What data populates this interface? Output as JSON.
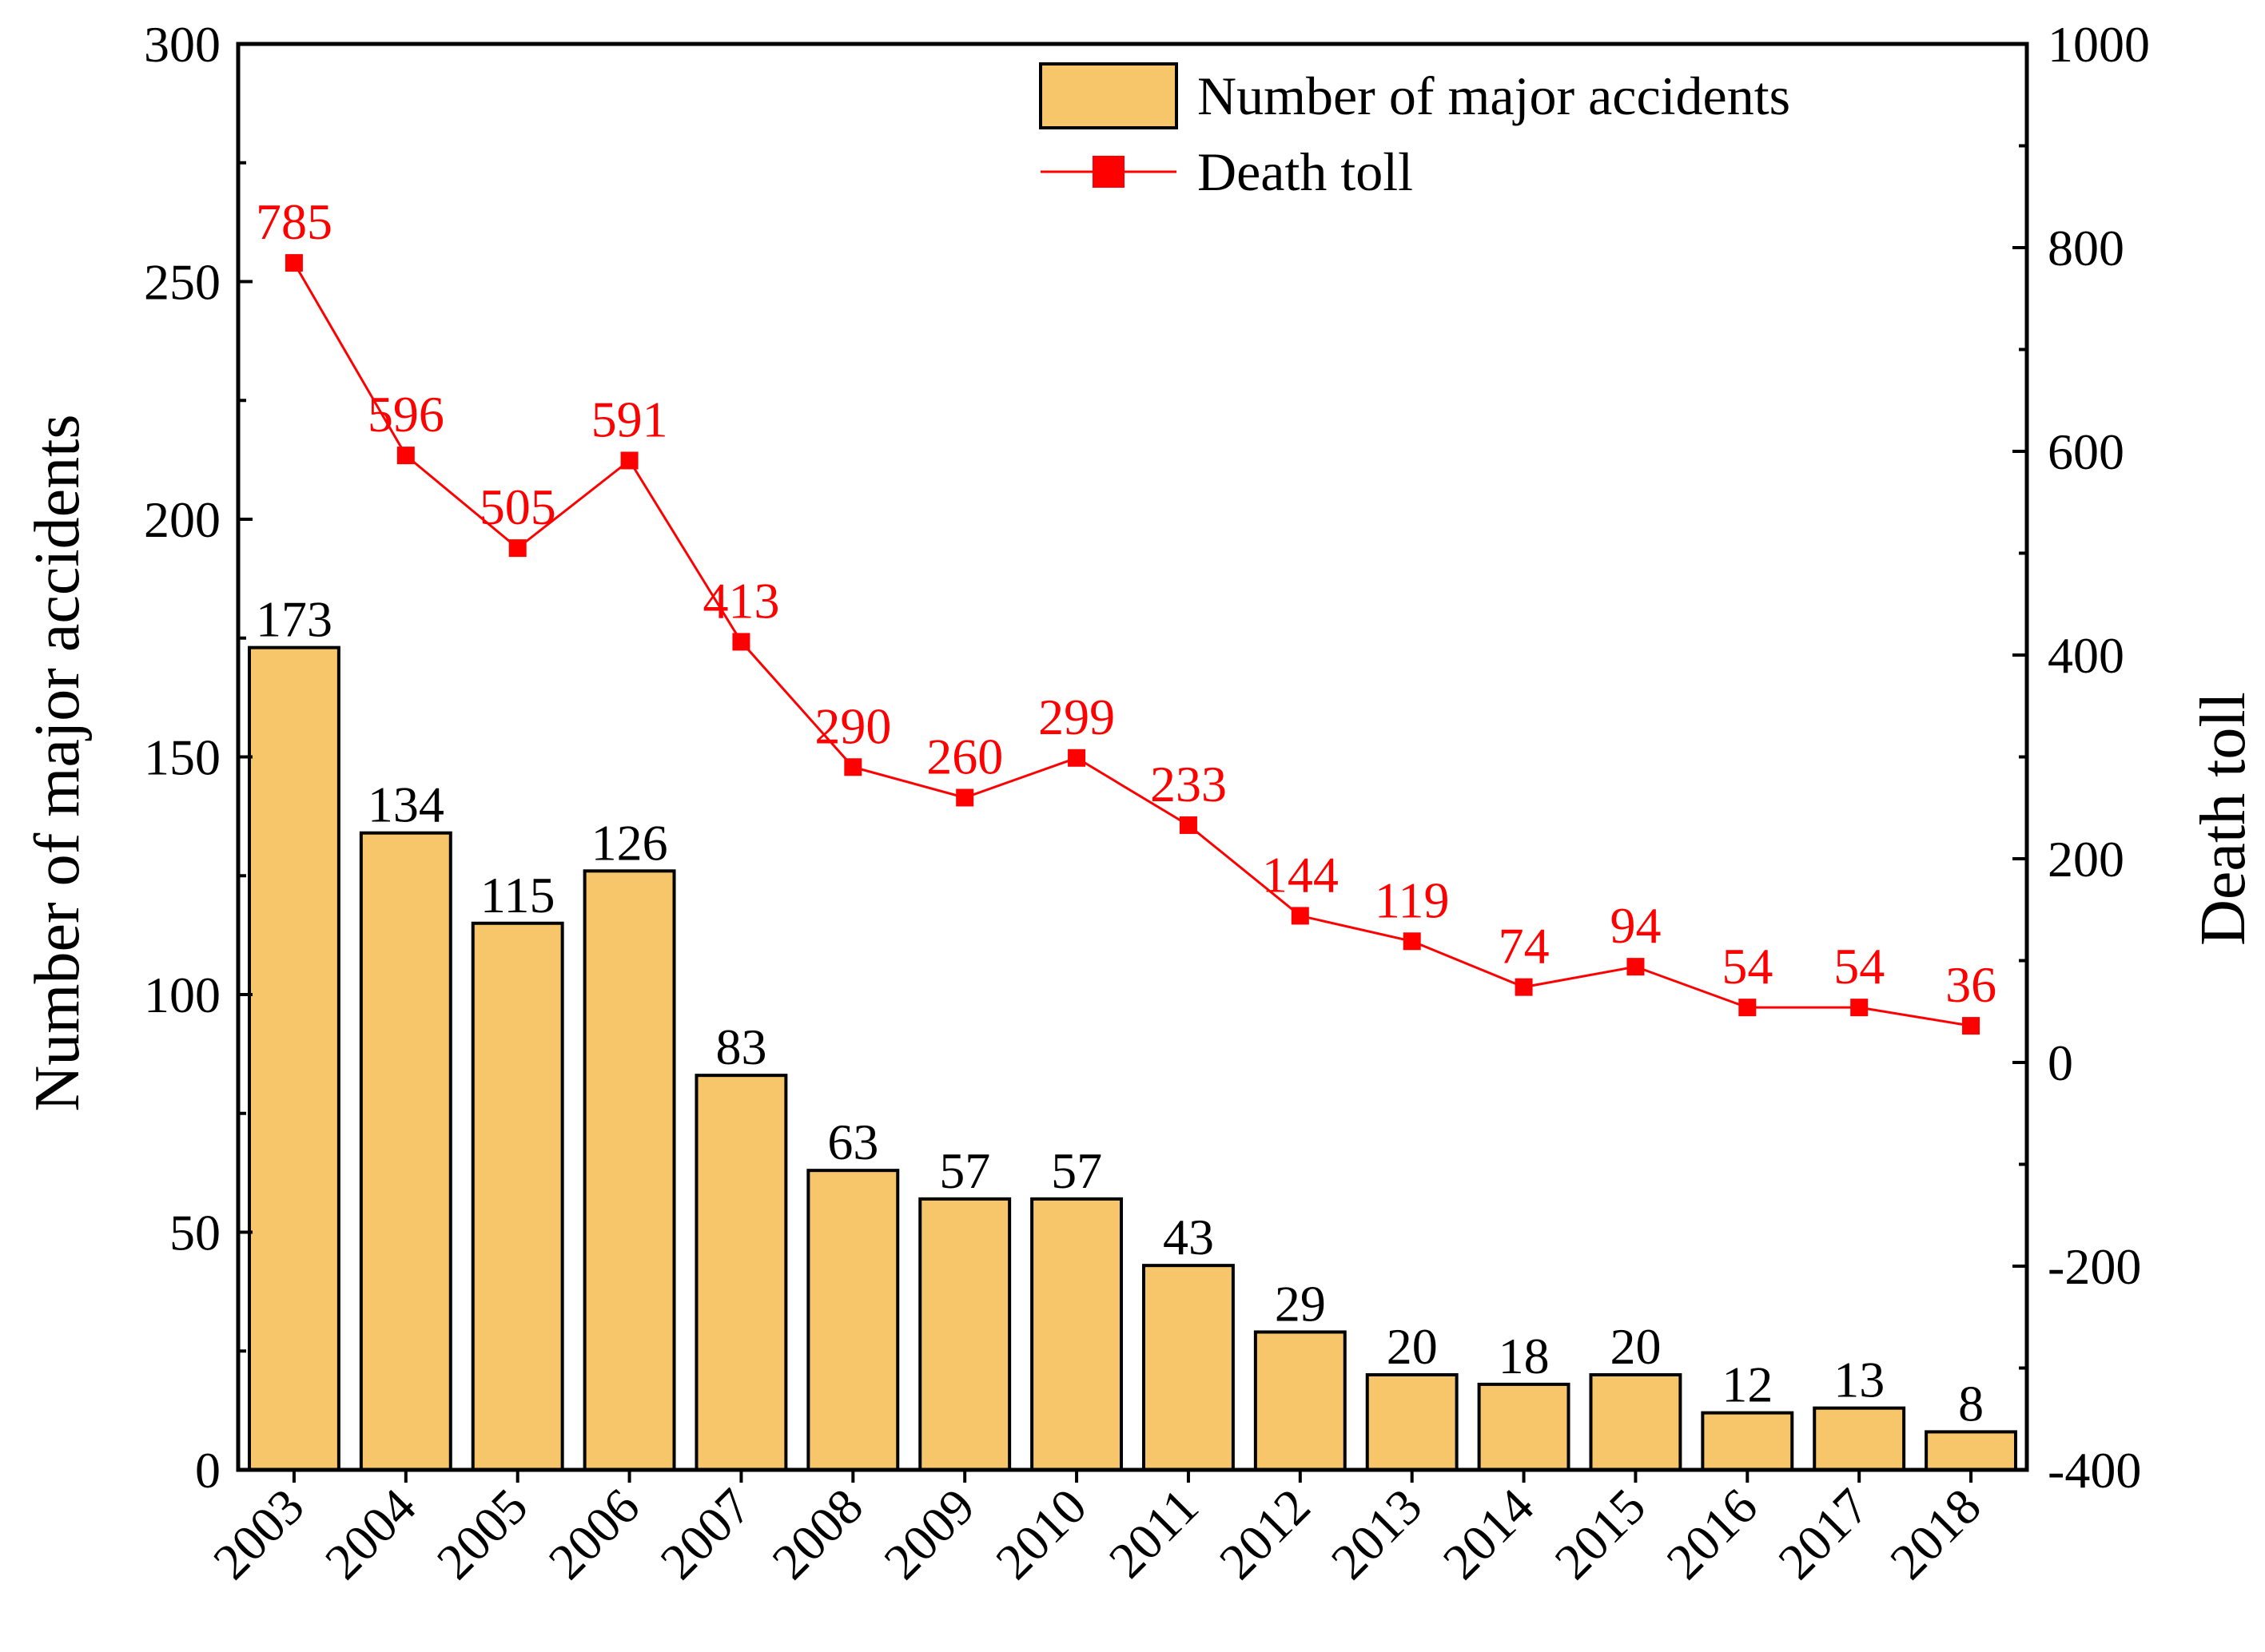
{
  "chart_data": {
    "type": "bar+line",
    "categories": [
      "2003",
      "2004",
      "2005",
      "2006",
      "2007",
      "2008",
      "2009",
      "2010",
      "2011",
      "2012",
      "2013",
      "2014",
      "2015",
      "2016",
      "2017",
      "2018"
    ],
    "series": [
      {
        "name": "Number of major accidents",
        "type": "bar",
        "axis": "left",
        "color": "#f8c66a",
        "values": [
          173,
          134,
          115,
          126,
          83,
          63,
          57,
          57,
          43,
          29,
          20,
          18,
          20,
          12,
          13,
          8
        ]
      },
      {
        "name": "Death toll",
        "type": "line",
        "axis": "right",
        "color": "#ff0000",
        "values": [
          785,
          596,
          505,
          591,
          413,
          290,
          260,
          299,
          233,
          144,
          119,
          74,
          94,
          54,
          54,
          36
        ]
      }
    ],
    "ylabel": "Number of major accidents",
    "y2label": "Death toll",
    "ylim": [
      0,
      300
    ],
    "y2lim": [
      -400,
      1000
    ],
    "yticks": [
      "0",
      "50",
      "100",
      "150",
      "200",
      "250",
      "300"
    ],
    "y2ticks": [
      "-400",
      "-200",
      "0",
      "200",
      "400",
      "600",
      "800",
      "1000"
    ],
    "legend": [
      "Number of major accidents",
      "Death toll"
    ],
    "legend_position": "top-right"
  }
}
